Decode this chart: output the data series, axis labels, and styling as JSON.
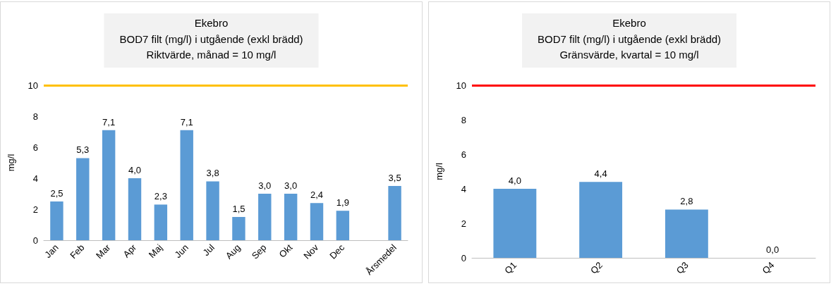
{
  "chart_data": [
    {
      "type": "bar",
      "title": "Ekebro",
      "subtitle": "BOD7 filt (mg/l) i utgående (exkl brädd)\nRiktvärde, månad = 10 mg/l",
      "ylabel": "mg/l",
      "categories": [
        "Jan",
        "Feb",
        "Mar",
        "Apr",
        "Maj",
        "Jun",
        "Jul",
        "Aug",
        "Sep",
        "Okt",
        "Nov",
        "Dec",
        null,
        "Årsmedel"
      ],
      "values": [
        2.5,
        5.3,
        7.1,
        4.0,
        2.3,
        7.1,
        3.8,
        1.5,
        3.0,
        3.0,
        2.4,
        1.9,
        null,
        3.5
      ],
      "value_labels": [
        "2,5",
        "5,3",
        "7,1",
        "4,0",
        "2,3",
        "7,1",
        "3,8",
        "1,5",
        "3,0",
        "3,0",
        "2,4",
        "1,9",
        null,
        "3,5"
      ],
      "color": "#5b9bd5",
      "ylim": [
        0,
        10
      ],
      "yticks": [
        0,
        2,
        4,
        6,
        8,
        10
      ],
      "grid": false,
      "ref_lines": [
        {
          "axis": "y",
          "value": 10,
          "color": "#ffc000"
        }
      ]
    },
    {
      "type": "bar",
      "title": "Ekebro",
      "subtitle": "BOD7 filt (mg/l) i utgående (exkl brädd)\nGränsvärde, kvartal = 10 mg/l",
      "ylabel": "mg/l",
      "categories": [
        "Q1",
        "Q2",
        "Q3",
        "Q4"
      ],
      "values": [
        4.0,
        4.4,
        2.8,
        0.0
      ],
      "value_labels": [
        "4,0",
        "4,4",
        "2,8",
        "0,0"
      ],
      "color": "#5b9bd5",
      "ylim": [
        0,
        10
      ],
      "yticks": [
        0,
        2,
        4,
        6,
        8,
        10
      ],
      "grid": false,
      "ref_lines": [
        {
          "axis": "y",
          "value": 10,
          "color": "#ff0000"
        }
      ]
    }
  ]
}
